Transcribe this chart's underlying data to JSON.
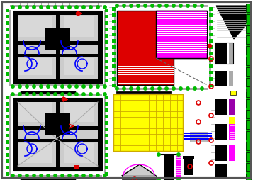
{
  "bg": "#ffffff",
  "black": "#000000",
  "red": "#dd0000",
  "magenta": "#ff00ff",
  "blue": "#0000ff",
  "yellow": "#ffff00",
  "gray": "#aaaaaa",
  "dgray": "#666666",
  "green": "#00bb00",
  "white": "#ffffff",
  "cyan": "#00aaaa",
  "purple": "#880088",
  "lt_gray": "#cccccc",
  "dark_green": "#005500"
}
